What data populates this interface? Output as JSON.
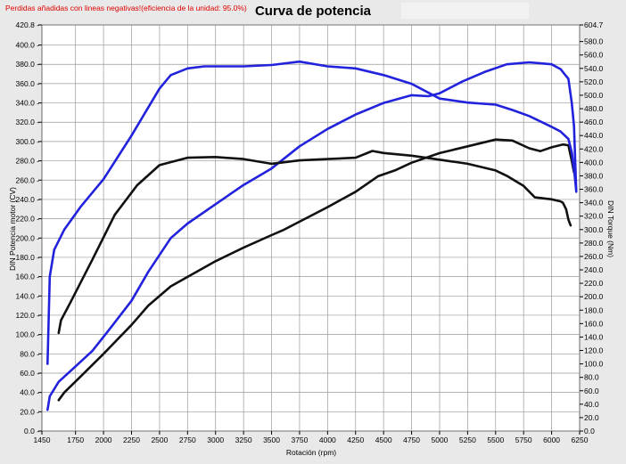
{
  "chart_data": {
    "type": "line",
    "title": "Curva de potencia",
    "note": "Perdidas añadidas con lineas negativas!(eficiencia de la unidad: 95.0%)",
    "xlabel": "Rotación (rpm)",
    "ylabel": "DIN Potencia motor (CV)",
    "y2label": "DIN Torque (Nm)",
    "xlim": [
      1450,
      6250
    ],
    "ylim": [
      0,
      420.8
    ],
    "y2lim": [
      0,
      604.7
    ],
    "xticks": [
      1450,
      1750,
      2000,
      2250,
      2500,
      2750,
      3000,
      3250,
      3500,
      3750,
      4000,
      4250,
      4500,
      4750,
      5000,
      5250,
      5500,
      5750,
      6000,
      6250
    ],
    "xtick_labels": [
      "1450",
      "1750",
      "2000",
      "2250",
      "2500",
      "2750",
      "3000",
      "3250",
      "3500",
      "3750",
      "4000",
      "4250",
      "4500",
      "4750",
      "5000",
      "5250",
      "5500",
      "5750",
      "6000",
      "6250"
    ],
    "yticks": [
      0,
      20,
      40,
      60,
      80,
      100,
      120,
      140,
      160,
      180,
      200,
      220,
      240,
      260,
      280,
      300,
      320,
      340,
      360,
      380,
      400,
      420.8
    ],
    "ytick_labels": [
      "0.0",
      "20.0",
      "40.0",
      "60.0",
      "80.0",
      "100.0",
      "120.0",
      "140.0",
      "160.0",
      "180.0",
      "200.0",
      "220.0",
      "240.0",
      "260.0",
      "280.0",
      "300.0",
      "320.0",
      "340.0",
      "360.0",
      "380.0",
      "400.0",
      "420.8"
    ],
    "y2ticks": [
      0,
      20,
      40,
      60,
      80,
      100,
      120,
      140,
      160,
      180,
      200,
      220,
      240,
      260,
      280,
      300,
      320,
      340,
      360,
      380,
      400,
      420,
      440,
      460,
      480,
      500,
      520,
      540,
      560,
      580,
      604.7
    ],
    "y2tick_labels": [
      "0.0",
      "20.0",
      "40.0",
      "60.0",
      "80.0",
      "100.0",
      "120.0",
      "140.0",
      "160.0",
      "180.0",
      "200.0",
      "220.0",
      "240.0",
      "260.0",
      "280.0",
      "300.0",
      "320.0",
      "340.0",
      "360.0",
      "380.0",
      "400.0",
      "420.0",
      "440.0",
      "460.0",
      "480.0",
      "500.0",
      "520.0",
      "540.0",
      "560.0",
      "580.0",
      "604.7"
    ],
    "grid": true,
    "series": [
      {
        "kind": "power",
        "axis": "left",
        "color": "#2222dd",
        "points": [
          [
            1500,
            22
          ],
          [
            1520,
            36
          ],
          [
            1600,
            51
          ],
          [
            1750,
            67
          ],
          [
            1900,
            83
          ],
          [
            2050,
            105
          ],
          [
            2250,
            135
          ],
          [
            2400,
            165
          ],
          [
            2600,
            200
          ],
          [
            2750,
            215
          ],
          [
            3000,
            235
          ],
          [
            3250,
            255
          ],
          [
            3500,
            272
          ],
          [
            3750,
            295
          ],
          [
            4000,
            313
          ],
          [
            4250,
            328
          ],
          [
            4500,
            340
          ],
          [
            4750,
            348
          ],
          [
            4900,
            347
          ],
          [
            5000,
            350
          ],
          [
            5200,
            362
          ],
          [
            5400,
            372
          ],
          [
            5600,
            380
          ],
          [
            5800,
            382
          ],
          [
            5900,
            381
          ],
          [
            6000,
            380
          ],
          [
            6080,
            375
          ],
          [
            6150,
            365
          ],
          [
            6180,
            340
          ],
          [
            6200,
            316
          ],
          [
            6220,
            248
          ]
        ]
      },
      {
        "kind": "power",
        "axis": "left",
        "color": "#111111",
        "points": [
          [
            1600,
            32
          ],
          [
            1650,
            40
          ],
          [
            1800,
            57
          ],
          [
            2000,
            80
          ],
          [
            2250,
            110
          ],
          [
            2400,
            130
          ],
          [
            2600,
            150
          ],
          [
            2800,
            163
          ],
          [
            3000,
            176
          ],
          [
            3250,
            190
          ],
          [
            3500,
            203
          ],
          [
            3600,
            208
          ],
          [
            3800,
            220
          ],
          [
            4000,
            232
          ],
          [
            4250,
            248
          ],
          [
            4450,
            264
          ],
          [
            4600,
            270
          ],
          [
            4750,
            278
          ],
          [
            5000,
            288
          ],
          [
            5250,
            295
          ],
          [
            5500,
            302
          ],
          [
            5650,
            301
          ],
          [
            5800,
            293
          ],
          [
            5900,
            290
          ],
          [
            6000,
            294
          ],
          [
            6100,
            297
          ],
          [
            6150,
            296
          ],
          [
            6180,
            280
          ],
          [
            6200,
            268
          ]
        ]
      },
      {
        "kind": "torque",
        "axis": "right",
        "color": "#2222dd",
        "points": [
          [
            1500,
            100
          ],
          [
            1520,
            230
          ],
          [
            1560,
            270
          ],
          [
            1650,
            300
          ],
          [
            1800,
            335
          ],
          [
            2000,
            375
          ],
          [
            2250,
            440
          ],
          [
            2500,
            510
          ],
          [
            2600,
            530
          ],
          [
            2750,
            540
          ],
          [
            2900,
            543
          ],
          [
            3100,
            543
          ],
          [
            3250,
            543
          ],
          [
            3500,
            545
          ],
          [
            3750,
            550
          ],
          [
            4000,
            543
          ],
          [
            4250,
            540
          ],
          [
            4500,
            530
          ],
          [
            4750,
            517
          ],
          [
            5000,
            495
          ],
          [
            5250,
            489
          ],
          [
            5500,
            486
          ],
          [
            5650,
            478
          ],
          [
            5800,
            469
          ],
          [
            6000,
            453
          ],
          [
            6080,
            446
          ],
          [
            6150,
            435
          ],
          [
            6180,
            415
          ],
          [
            6200,
            390
          ],
          [
            6220,
            358
          ]
        ]
      },
      {
        "kind": "torque",
        "axis": "right",
        "color": "#111111",
        "points": [
          [
            1600,
            146
          ],
          [
            1620,
            165
          ],
          [
            1700,
            190
          ],
          [
            1900,
            255
          ],
          [
            2100,
            322
          ],
          [
            2300,
            366
          ],
          [
            2500,
            396
          ],
          [
            2750,
            407
          ],
          [
            3000,
            408
          ],
          [
            3250,
            405
          ],
          [
            3500,
            398
          ],
          [
            3750,
            403
          ],
          [
            4000,
            405
          ],
          [
            4250,
            407
          ],
          [
            4400,
            417
          ],
          [
            4500,
            414
          ],
          [
            4750,
            410
          ],
          [
            5000,
            404
          ],
          [
            5250,
            398
          ],
          [
            5500,
            388
          ],
          [
            5600,
            380
          ],
          [
            5750,
            365
          ],
          [
            5850,
            348
          ],
          [
            6000,
            345
          ],
          [
            6080,
            342
          ],
          [
            6100,
            340
          ],
          [
            6130,
            330
          ],
          [
            6150,
            315
          ],
          [
            6170,
            306
          ]
        ]
      }
    ]
  }
}
